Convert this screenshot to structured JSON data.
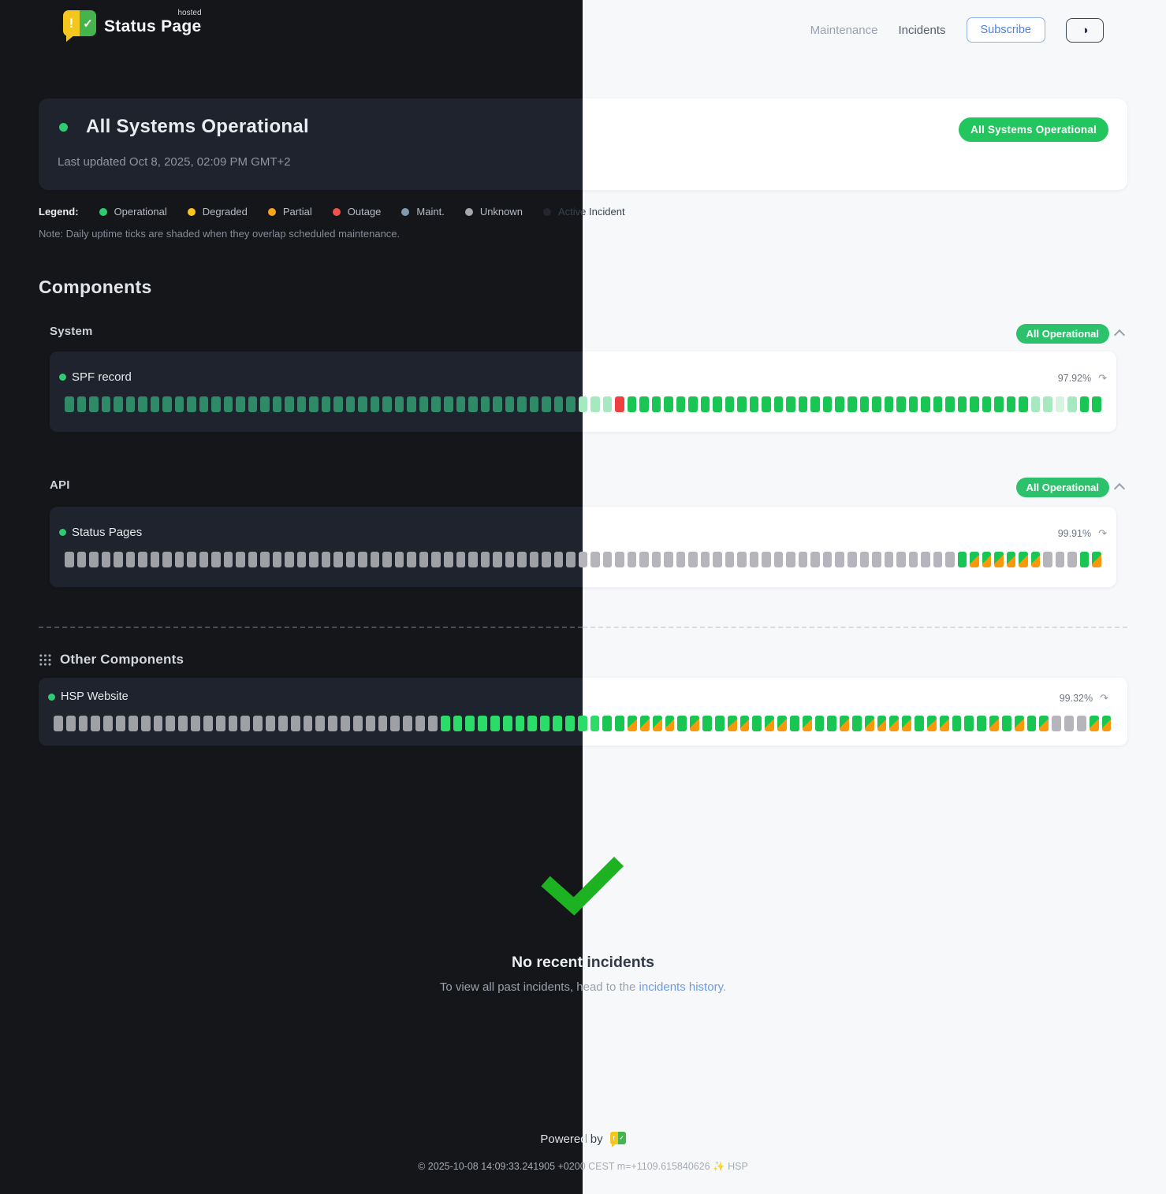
{
  "header": {
    "brand": "Status Page",
    "brand_badge": "hosted",
    "logo_glyphs": {
      "alert": "!",
      "check": "✓"
    },
    "nav": {
      "maintenance": "Maintenance",
      "incidents": "Incidents"
    },
    "subscribe_label": "Subscribe",
    "theme_toggle_icon": "half-circle"
  },
  "status_banner": {
    "title": "All Systems Operational",
    "last_updated": "Last updated Oct 8, 2025, 02:09 PM GMT+2",
    "badge": "All Systems Operational"
  },
  "legend": {
    "label": "Legend:",
    "items": [
      {
        "name": "Operational",
        "color": "#2ecc71"
      },
      {
        "name": "Degraded",
        "color": "#f7c51e"
      },
      {
        "name": "Partial",
        "color": "#f6a21d"
      },
      {
        "name": "Outage",
        "color": "#ef5350"
      },
      {
        "name": "Maint.",
        "color": "#7f99ad"
      },
      {
        "name": "Unknown",
        "color": "#a6a6ac"
      },
      {
        "name": "Active Incident",
        "color": "#23262c",
        "on_light": true
      }
    ],
    "note": "Note: Daily uptime ticks are shaded when they overlap scheduled maintenance."
  },
  "components": {
    "heading": "Components",
    "tick_legend": "o=operational f=operational-faded F=operational-very-faded b=operational-bright x=outage u=unknown d=operational-with-maintenance-overlap",
    "groups": [
      {
        "name": "System",
        "badge": "All Operational",
        "items": [
          {
            "name": "SPF record",
            "uptime": "97.92%",
            "ticks": [
              [
                "o",
                42
              ],
              [
                "f",
                3
              ],
              [
                "x",
                1
              ],
              [
                "o",
                33
              ],
              [
                "f",
                2
              ],
              [
                "F",
                1
              ],
              [
                "f",
                1
              ],
              [
                "o",
                2
              ]
            ]
          }
        ]
      },
      {
        "name": "API",
        "badge": "All Operational",
        "items": [
          {
            "name": "Status Pages",
            "uptime": "99.91%",
            "ticks": [
              [
                "u",
                73
              ],
              [
                "o",
                1
              ],
              [
                "d",
                6
              ],
              [
                "u",
                3
              ],
              [
                "o",
                1
              ],
              [
                "d",
                1
              ]
            ]
          }
        ]
      }
    ],
    "other": {
      "heading": "Other Components",
      "items": [
        {
          "name": "HSP Website",
          "uptime": "99.32%",
          "ticks": [
            [
              "u",
              31
            ],
            [
              "b",
              13
            ],
            [
              "o",
              2
            ],
            [
              "d",
              4
            ],
            [
              "o",
              1
            ],
            [
              "d",
              1
            ],
            [
              "o",
              2
            ],
            [
              "d",
              2
            ],
            [
              "o",
              1
            ],
            [
              "d",
              2
            ],
            [
              "o",
              1
            ],
            [
              "d",
              1
            ],
            [
              "o",
              2
            ],
            [
              "d",
              1
            ],
            [
              "o",
              1
            ],
            [
              "d",
              4
            ],
            [
              "o",
              1
            ],
            [
              "d",
              2
            ],
            [
              "o",
              3
            ],
            [
              "d",
              1
            ],
            [
              "o",
              1
            ],
            [
              "d",
              1
            ],
            [
              "o",
              1
            ],
            [
              "d",
              1
            ],
            [
              "u",
              3
            ],
            [
              "d",
              2
            ]
          ]
        }
      ]
    }
  },
  "incidents_section": {
    "title": "No recent incidents",
    "subtitle_prefix": "To view all past incidents, head to the ",
    "link_text": "incidents history",
    "subtitle_suffix": "."
  },
  "footer": {
    "powered_by": "Powered by",
    "copyright": "© 2025-10-08 14:09:33.241905 +0200 CEST m=+1109.615840626 ✨ HSP"
  },
  "colors": {
    "page_dark": "#14161a",
    "page_light": "#f7f8fa",
    "card_dark": "#1e232d",
    "card_light": "#ffffff",
    "accent_green": "#22c55e",
    "group_badge_green": "#2cc26c",
    "link_blue": "#6d9ae8",
    "subscribe_blue": "#4f82dd",
    "tick_operational_dark": "#2e8a67",
    "tick_operational_light": "#19c553",
    "tick_operational_bright_dark": "#2cdc69",
    "tick_faded": "#a6e9c1",
    "tick_very_faded": "#d6f4e0",
    "tick_outage": "#ee4040",
    "tick_unknown_dark": "#9fa0a6",
    "tick_unknown_light": "#b5b5bb",
    "tick_maintenance_orange": "#f8990b",
    "checkmark_green": "#1cb222"
  }
}
